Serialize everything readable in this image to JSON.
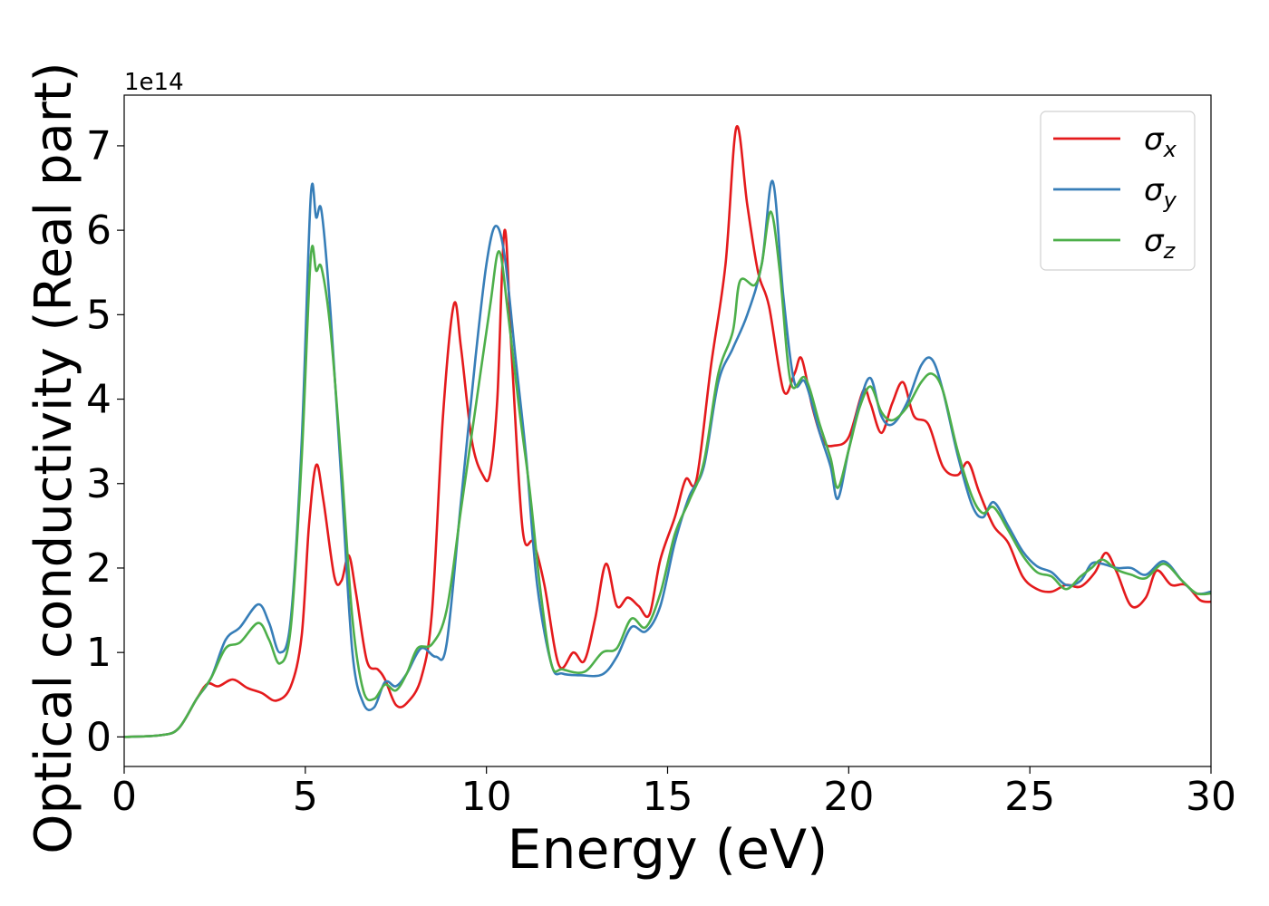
{
  "chart_data": {
    "type": "line",
    "xlabel": "Energy (eV)",
    "ylabel": "Optical conductivity (Real part)",
    "y_offset_label": "1e14",
    "y_scale": 100000000000000.0,
    "xlim": [
      0,
      30
    ],
    "ylim": [
      -0.35,
      7.6
    ],
    "xticks": [
      0,
      5,
      10,
      15,
      20,
      25,
      30
    ],
    "yticks": [
      0,
      1,
      2,
      3,
      4,
      5,
      6,
      7
    ],
    "grid": false,
    "legend_position": "top-right",
    "series": [
      {
        "name": "σ_x",
        "legend_base": "σ",
        "legend_sub": "x",
        "color": "#e41a1c",
        "points": [
          [
            0,
            0
          ],
          [
            1,
            0.02
          ],
          [
            1.5,
            0.1
          ],
          [
            2,
            0.45
          ],
          [
            2.3,
            0.63
          ],
          [
            2.6,
            0.6
          ],
          [
            3,
            0.68
          ],
          [
            3.4,
            0.58
          ],
          [
            3.8,
            0.52
          ],
          [
            4.2,
            0.43
          ],
          [
            4.6,
            0.6
          ],
          [
            4.9,
            1.2
          ],
          [
            5.1,
            2.5
          ],
          [
            5.3,
            3.22
          ],
          [
            5.5,
            2.8
          ],
          [
            5.8,
            1.9
          ],
          [
            6.0,
            1.85
          ],
          [
            6.2,
            2.15
          ],
          [
            6.4,
            1.7
          ],
          [
            6.7,
            0.9
          ],
          [
            7.0,
            0.8
          ],
          [
            7.2,
            0.68
          ],
          [
            7.5,
            0.38
          ],
          [
            7.8,
            0.4
          ],
          [
            8.2,
            0.7
          ],
          [
            8.5,
            1.5
          ],
          [
            8.8,
            3.8
          ],
          [
            9.1,
            5.12
          ],
          [
            9.3,
            4.6
          ],
          [
            9.6,
            3.5
          ],
          [
            9.9,
            3.1
          ],
          [
            10.1,
            3.12
          ],
          [
            10.3,
            4.0
          ],
          [
            10.5,
            6.0
          ],
          [
            10.7,
            4.5
          ],
          [
            11,
            2.45
          ],
          [
            11.3,
            2.3
          ],
          [
            11.6,
            1.8
          ],
          [
            12,
            0.85
          ],
          [
            12.4,
            1.0
          ],
          [
            12.7,
            0.9
          ],
          [
            13,
            1.4
          ],
          [
            13.3,
            2.05
          ],
          [
            13.6,
            1.55
          ],
          [
            13.9,
            1.65
          ],
          [
            14.2,
            1.55
          ],
          [
            14.5,
            1.45
          ],
          [
            14.8,
            2.1
          ],
          [
            15.2,
            2.6
          ],
          [
            15.5,
            3.05
          ],
          [
            15.8,
            3.05
          ],
          [
            16.2,
            4.4
          ],
          [
            16.6,
            5.6
          ],
          [
            16.9,
            7.22
          ],
          [
            17.2,
            6.3
          ],
          [
            17.5,
            5.5
          ],
          [
            17.8,
            5.1
          ],
          [
            18.2,
            4.1
          ],
          [
            18.5,
            4.3
          ],
          [
            18.7,
            4.48
          ],
          [
            19.0,
            3.9
          ],
          [
            19.3,
            3.5
          ],
          [
            19.6,
            3.45
          ],
          [
            20.0,
            3.55
          ],
          [
            20.4,
            4.1
          ],
          [
            20.6,
            3.95
          ],
          [
            20.9,
            3.6
          ],
          [
            21.2,
            3.95
          ],
          [
            21.5,
            4.2
          ],
          [
            21.8,
            3.8
          ],
          [
            22.2,
            3.7
          ],
          [
            22.6,
            3.2
          ],
          [
            23.0,
            3.1
          ],
          [
            23.3,
            3.25
          ],
          [
            23.6,
            2.9
          ],
          [
            24.0,
            2.5
          ],
          [
            24.4,
            2.3
          ],
          [
            24.8,
            1.9
          ],
          [
            25.2,
            1.75
          ],
          [
            25.6,
            1.72
          ],
          [
            26,
            1.8
          ],
          [
            26.4,
            1.78
          ],
          [
            26.8,
            1.95
          ],
          [
            27.1,
            2.18
          ],
          [
            27.4,
            1.95
          ],
          [
            27.8,
            1.55
          ],
          [
            28.2,
            1.65
          ],
          [
            28.5,
            1.97
          ],
          [
            28.9,
            1.8
          ],
          [
            29.3,
            1.8
          ],
          [
            29.7,
            1.62
          ],
          [
            30,
            1.6
          ]
        ]
      },
      {
        "name": "σ_y",
        "legend_base": "σ",
        "legend_sub": "y",
        "color": "#377eb8",
        "points": [
          [
            0,
            0
          ],
          [
            1,
            0.02
          ],
          [
            1.5,
            0.1
          ],
          [
            2,
            0.45
          ],
          [
            2.4,
            0.7
          ],
          [
            2.8,
            1.15
          ],
          [
            3.2,
            1.3
          ],
          [
            3.7,
            1.57
          ],
          [
            4.0,
            1.35
          ],
          [
            4.3,
            1.0
          ],
          [
            4.6,
            1.4
          ],
          [
            4.9,
            3.5
          ],
          [
            5.15,
            6.4
          ],
          [
            5.3,
            6.15
          ],
          [
            5.45,
            6.22
          ],
          [
            5.7,
            5.0
          ],
          [
            6.0,
            3.0
          ],
          [
            6.3,
            1.0
          ],
          [
            6.6,
            0.4
          ],
          [
            6.9,
            0.35
          ],
          [
            7.2,
            0.65
          ],
          [
            7.5,
            0.6
          ],
          [
            7.8,
            0.75
          ],
          [
            8.2,
            1.05
          ],
          [
            8.6,
            0.95
          ],
          [
            8.9,
            1.1
          ],
          [
            9.3,
            2.8
          ],
          [
            9.7,
            4.5
          ],
          [
            10.0,
            5.6
          ],
          [
            10.25,
            6.05
          ],
          [
            10.5,
            5.7
          ],
          [
            10.8,
            4.5
          ],
          [
            11.1,
            3.3
          ],
          [
            11.4,
            1.8
          ],
          [
            11.8,
            0.85
          ],
          [
            12.1,
            0.75
          ],
          [
            12.6,
            0.73
          ],
          [
            13.2,
            0.74
          ],
          [
            13.6,
            0.95
          ],
          [
            14.0,
            1.3
          ],
          [
            14.4,
            1.25
          ],
          [
            14.8,
            1.55
          ],
          [
            15.2,
            2.3
          ],
          [
            15.6,
            2.85
          ],
          [
            16.0,
            3.2
          ],
          [
            16.4,
            4.2
          ],
          [
            16.8,
            4.6
          ],
          [
            17.2,
            5.0
          ],
          [
            17.6,
            5.6
          ],
          [
            17.9,
            6.58
          ],
          [
            18.2,
            5.2
          ],
          [
            18.5,
            4.2
          ],
          [
            18.8,
            4.2
          ],
          [
            19.2,
            3.6
          ],
          [
            19.5,
            3.2
          ],
          [
            19.7,
            2.82
          ],
          [
            20.0,
            3.4
          ],
          [
            20.3,
            3.95
          ],
          [
            20.6,
            4.25
          ],
          [
            20.9,
            3.8
          ],
          [
            21.2,
            3.7
          ],
          [
            21.6,
            3.95
          ],
          [
            22.0,
            4.4
          ],
          [
            22.3,
            4.47
          ],
          [
            22.6,
            4.1
          ],
          [
            23.0,
            3.35
          ],
          [
            23.4,
            2.75
          ],
          [
            23.7,
            2.6
          ],
          [
            24.0,
            2.78
          ],
          [
            24.4,
            2.5
          ],
          [
            24.8,
            2.2
          ],
          [
            25.2,
            2.02
          ],
          [
            25.6,
            1.95
          ],
          [
            26.0,
            1.8
          ],
          [
            26.4,
            1.85
          ],
          [
            26.7,
            2.05
          ],
          [
            27.0,
            2.05
          ],
          [
            27.4,
            2.0
          ],
          [
            27.8,
            2.0
          ],
          [
            28.2,
            1.92
          ],
          [
            28.7,
            2.08
          ],
          [
            29.2,
            1.85
          ],
          [
            29.6,
            1.7
          ],
          [
            30,
            1.72
          ]
        ]
      },
      {
        "name": "σ_z",
        "legend_base": "σ",
        "legend_sub": "z",
        "color": "#4daf4a",
        "points": [
          [
            0,
            0
          ],
          [
            1,
            0.02
          ],
          [
            1.5,
            0.1
          ],
          [
            2,
            0.45
          ],
          [
            2.4,
            0.7
          ],
          [
            2.8,
            1.05
          ],
          [
            3.2,
            1.12
          ],
          [
            3.7,
            1.35
          ],
          [
            4.0,
            1.15
          ],
          [
            4.3,
            0.87
          ],
          [
            4.6,
            1.3
          ],
          [
            4.9,
            3.3
          ],
          [
            5.15,
            5.68
          ],
          [
            5.3,
            5.52
          ],
          [
            5.45,
            5.55
          ],
          [
            5.7,
            4.8
          ],
          [
            6.0,
            3.2
          ],
          [
            6.3,
            1.4
          ],
          [
            6.6,
            0.55
          ],
          [
            6.9,
            0.45
          ],
          [
            7.2,
            0.62
          ],
          [
            7.5,
            0.55
          ],
          [
            7.8,
            0.75
          ],
          [
            8.1,
            1.05
          ],
          [
            8.5,
            1.1
          ],
          [
            8.9,
            1.5
          ],
          [
            9.3,
            2.7
          ],
          [
            9.7,
            3.9
          ],
          [
            10.1,
            5.1
          ],
          [
            10.35,
            5.75
          ],
          [
            10.6,
            5.0
          ],
          [
            10.9,
            3.9
          ],
          [
            11.2,
            2.9
          ],
          [
            11.5,
            1.7
          ],
          [
            11.8,
            0.85
          ],
          [
            12.1,
            0.8
          ],
          [
            12.7,
            0.77
          ],
          [
            13.2,
            1.0
          ],
          [
            13.6,
            1.05
          ],
          [
            14.0,
            1.4
          ],
          [
            14.4,
            1.3
          ],
          [
            14.8,
            1.7
          ],
          [
            15.2,
            2.4
          ],
          [
            15.6,
            2.8
          ],
          [
            16.0,
            3.25
          ],
          [
            16.4,
            4.3
          ],
          [
            16.8,
            4.8
          ],
          [
            17.0,
            5.4
          ],
          [
            17.4,
            5.35
          ],
          [
            17.6,
            5.6
          ],
          [
            17.85,
            6.22
          ],
          [
            18.1,
            5.5
          ],
          [
            18.4,
            4.2
          ],
          [
            18.8,
            4.25
          ],
          [
            19.2,
            3.7
          ],
          [
            19.5,
            3.3
          ],
          [
            19.7,
            2.95
          ],
          [
            20.0,
            3.4
          ],
          [
            20.3,
            3.9
          ],
          [
            20.6,
            4.15
          ],
          [
            20.9,
            3.85
          ],
          [
            21.2,
            3.75
          ],
          [
            21.6,
            3.9
          ],
          [
            22.0,
            4.2
          ],
          [
            22.3,
            4.3
          ],
          [
            22.6,
            4.1
          ],
          [
            23.0,
            3.4
          ],
          [
            23.4,
            2.85
          ],
          [
            23.7,
            2.65
          ],
          [
            24.0,
            2.72
          ],
          [
            24.4,
            2.45
          ],
          [
            24.8,
            2.15
          ],
          [
            25.2,
            1.95
          ],
          [
            25.6,
            1.9
          ],
          [
            26.0,
            1.75
          ],
          [
            26.4,
            1.9
          ],
          [
            26.7,
            2.0
          ],
          [
            27.0,
            2.1
          ],
          [
            27.4,
            1.98
          ],
          [
            27.8,
            1.92
          ],
          [
            28.2,
            1.88
          ],
          [
            28.7,
            2.05
          ],
          [
            29.2,
            1.85
          ],
          [
            29.6,
            1.7
          ],
          [
            30,
            1.7
          ]
        ]
      }
    ]
  }
}
